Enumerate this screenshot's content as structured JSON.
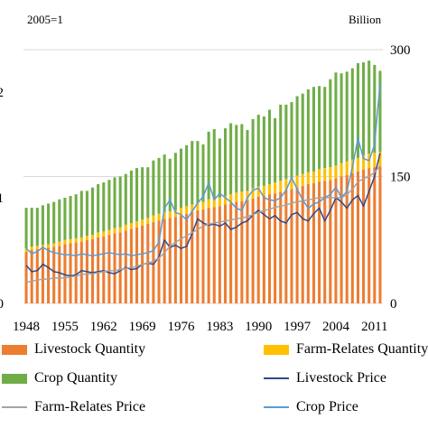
{
  "chart_data": {
    "type": "bar",
    "left_axis_unit": "2005=1",
    "right_axis_unit": "Billion",
    "x_tick_labels": [
      "1948",
      "1955",
      "1962",
      "1969",
      "1976",
      "1983",
      "1990",
      "1997",
      "2004",
      "2011"
    ],
    "left_axis_tick_labels": [
      "0",
      "1",
      "2"
    ],
    "right_axis_tick_labels": [
      "0",
      "150",
      "300"
    ],
    "ylim_right": [
      0,
      300
    ],
    "ylim_left": [
      0,
      2.4
    ],
    "grid": "horizontal",
    "years": [
      1948,
      1949,
      1950,
      1951,
      1952,
      1953,
      1954,
      1955,
      1956,
      1957,
      1958,
      1959,
      1960,
      1961,
      1962,
      1963,
      1964,
      1965,
      1966,
      1967,
      1968,
      1969,
      1970,
      1971,
      1972,
      1973,
      1974,
      1975,
      1976,
      1977,
      1978,
      1979,
      1980,
      1981,
      1982,
      1983,
      1984,
      1985,
      1986,
      1987,
      1988,
      1989,
      1990,
      1991,
      1992,
      1993,
      1994,
      1995,
      1996,
      1997,
      1998,
      1999,
      2000,
      2001,
      2002,
      2003,
      2004,
      2005,
      2006,
      2007,
      2008,
      2009,
      2010,
      2011,
      2012
    ],
    "series": [
      {
        "name": "Livestock Quantity",
        "kind": "bar",
        "axis": "right",
        "color": "#ED7D31",
        "values": [
          61,
          63,
          64,
          65,
          66,
          67,
          68,
          70,
          71,
          72,
          73,
          75,
          76,
          78,
          79,
          81,
          83,
          84,
          86,
          88,
          90,
          92,
          94,
          96,
          98,
          100,
          101,
          102,
          104,
          106,
          108,
          110,
          111,
          113,
          114,
          115,
          117,
          118,
          120,
          121,
          122,
          124,
          126,
          127,
          129,
          130,
          132,
          134,
          135,
          137,
          139,
          141,
          142,
          144,
          145,
          146,
          148,
          150,
          152,
          154,
          156,
          158,
          160,
          161,
          162
        ]
      },
      {
        "name": "Farm-Relates Quantity",
        "kind": "bar",
        "axis": "right",
        "color": "#FFC000",
        "values": [
          4,
          4,
          4,
          4,
          4,
          4,
          5,
          5,
          5,
          5,
          5,
          5,
          5,
          6,
          6,
          6,
          6,
          6,
          7,
          7,
          7,
          7,
          7,
          8,
          8,
          8,
          8,
          8,
          9,
          9,
          9,
          9,
          9,
          10,
          10,
          10,
          10,
          11,
          11,
          11,
          11,
          12,
          12,
          12,
          12,
          13,
          13,
          13,
          13,
          14,
          14,
          14,
          14,
          15,
          15,
          15,
          15,
          16,
          16,
          16,
          16,
          17,
          17,
          17,
          17
        ]
      },
      {
        "name": "Crop Quantity",
        "kind": "bar",
        "axis": "right",
        "color": "#70AD47",
        "values": [
          48,
          46,
          45,
          47,
          48,
          49,
          50,
          50,
          51,
          52,
          55,
          53,
          56,
          57,
          58,
          59,
          60,
          60,
          60,
          62,
          63,
          62,
          60,
          65,
          66,
          68,
          62,
          68,
          70,
          72,
          75,
          73,
          68,
          80,
          82,
          70,
          80,
          84,
          80,
          80,
          72,
          82,
          85,
          82,
          88,
          76,
          90,
          88,
          90,
          94,
          95,
          98,
          100,
          98,
          96,
          104,
          110,
          106,
          106,
          108,
          112,
          110,
          110,
          104,
          96
        ]
      },
      {
        "name": "Livestock Price",
        "kind": "line",
        "axis": "left",
        "color": "#2E4A8B",
        "values": [
          0.36,
          0.3,
          0.31,
          0.37,
          0.34,
          0.3,
          0.29,
          0.27,
          0.26,
          0.27,
          0.31,
          0.3,
          0.29,
          0.3,
          0.31,
          0.29,
          0.28,
          0.31,
          0.34,
          0.32,
          0.33,
          0.37,
          0.38,
          0.37,
          0.44,
          0.6,
          0.53,
          0.55,
          0.52,
          0.54,
          0.66,
          0.8,
          0.76,
          0.74,
          0.75,
          0.73,
          0.76,
          0.7,
          0.72,
          0.76,
          0.78,
          0.84,
          0.88,
          0.84,
          0.8,
          0.83,
          0.78,
          0.76,
          0.84,
          0.86,
          0.8,
          0.78,
          0.85,
          0.9,
          0.78,
          0.88,
          1.0,
          0.96,
          0.9,
          0.98,
          1.02,
          0.92,
          1.06,
          1.2,
          1.42
        ]
      },
      {
        "name": "Farm-Relates Price",
        "kind": "line",
        "axis": "left",
        "color": "#A5A5A5",
        "values": [
          0.2,
          0.21,
          0.22,
          0.23,
          0.23,
          0.24,
          0.24,
          0.24,
          0.25,
          0.26,
          0.27,
          0.28,
          0.28,
          0.29,
          0.3,
          0.31,
          0.31,
          0.32,
          0.33,
          0.34,
          0.35,
          0.37,
          0.38,
          0.4,
          0.43,
          0.48,
          0.54,
          0.58,
          0.61,
          0.64,
          0.67,
          0.7,
          0.73,
          0.75,
          0.76,
          0.77,
          0.78,
          0.79,
          0.8,
          0.81,
          0.82,
          0.84,
          0.86,
          0.88,
          0.89,
          0.91,
          0.92,
          0.93,
          0.95,
          0.96,
          0.97,
          0.98,
          0.99,
          1.0,
          1.0,
          1.0,
          1.0,
          1.0,
          1.03,
          1.08,
          1.15,
          1.18,
          1.2,
          1.24,
          1.3
        ]
      },
      {
        "name": "Crop Price",
        "kind": "line",
        "axis": "left",
        "color": "#5B9BD5",
        "values": [
          0.52,
          0.47,
          0.49,
          0.53,
          0.5,
          0.48,
          0.47,
          0.46,
          0.46,
          0.45,
          0.47,
          0.46,
          0.45,
          0.46,
          0.47,
          0.48,
          0.47,
          0.46,
          0.47,
          0.45,
          0.46,
          0.47,
          0.48,
          0.5,
          0.58,
          0.9,
          0.98,
          0.86,
          0.84,
          0.79,
          0.87,
          0.95,
          1.01,
          1.14,
          0.98,
          1.04,
          1.0,
          0.96,
          0.9,
          0.88,
          1.0,
          1.07,
          1.09,
          1.0,
          0.98,
          0.97,
          1.0,
          1.07,
          1.19,
          1.08,
          0.98,
          0.9,
          0.94,
          0.96,
          1.0,
          1.03,
          1.1,
          1.0,
          1.06,
          1.29,
          1.56,
          1.37,
          1.35,
          1.5,
          2.08
        ]
      }
    ]
  }
}
